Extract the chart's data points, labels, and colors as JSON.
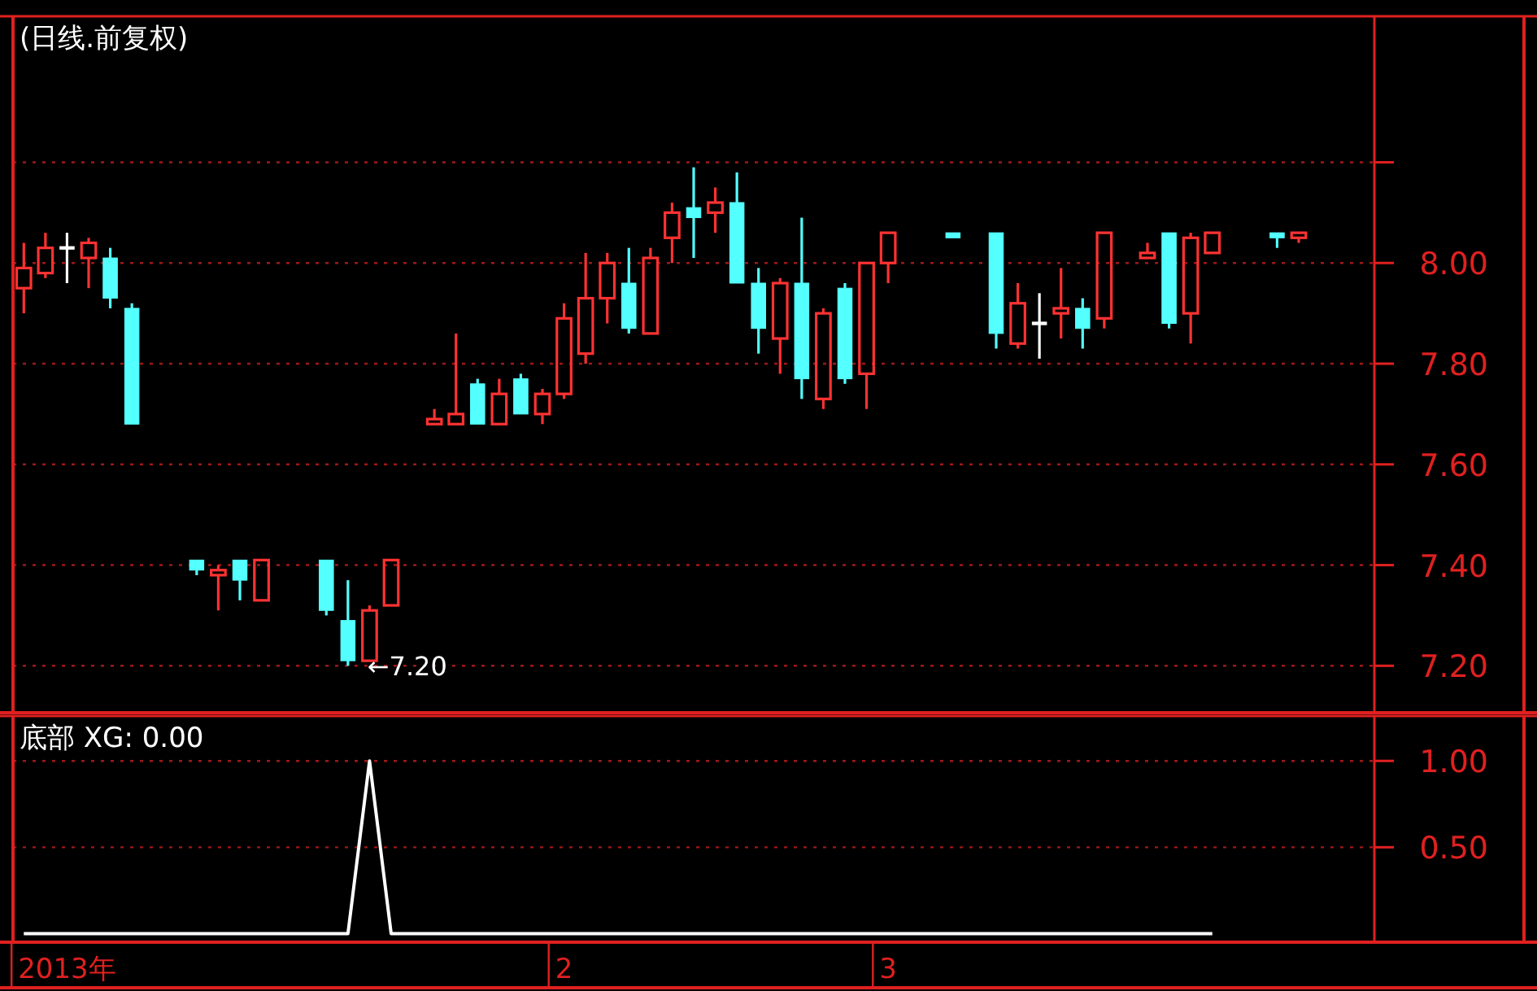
{
  "chart_data": [
    {
      "type": "candlestick",
      "title": "(日线.前复权)",
      "categories": [
        null,
        null,
        null,
        null,
        null,
        null,
        null,
        null,
        null,
        null,
        null,
        null,
        null,
        null,
        null,
        null,
        null,
        null,
        null,
        null,
        null,
        null,
        null,
        null,
        null,
        null,
        null,
        null,
        null,
        null,
        null,
        null,
        null,
        null,
        null,
        null,
        null,
        null,
        null,
        null,
        null,
        null,
        null,
        null,
        null,
        null,
        null,
        null,
        null,
        null,
        null,
        null,
        null,
        null,
        null,
        null,
        null,
        null,
        null,
        null,
        null,
        null,
        null
      ],
      "ohlc": [
        [
          7.95,
          8.04,
          7.9,
          7.99
        ],
        [
          7.98,
          8.06,
          7.97,
          8.03
        ],
        [
          8.03,
          8.06,
          7.96,
          8.03
        ],
        [
          8.01,
          8.05,
          7.95,
          8.04
        ],
        [
          8.01,
          8.03,
          7.91,
          7.93
        ],
        [
          7.91,
          7.92,
          7.68,
          7.68
        ],
        null,
        null,
        [
          7.41,
          7.41,
          7.38,
          7.39
        ],
        [
          7.38,
          7.4,
          7.31,
          7.39
        ],
        [
          7.41,
          7.41,
          7.33,
          7.37
        ],
        [
          7.33,
          7.41,
          7.33,
          7.41
        ],
        null,
        null,
        [
          7.41,
          7.41,
          7.3,
          7.31
        ],
        [
          7.29,
          7.37,
          7.2,
          7.21
        ],
        [
          7.21,
          7.32,
          7.21,
          7.31
        ],
        [
          7.32,
          7.41,
          7.32,
          7.41
        ],
        null,
        [
          7.68,
          7.71,
          7.68,
          7.69
        ],
        [
          7.68,
          7.86,
          7.68,
          7.7
        ],
        [
          7.76,
          7.77,
          7.68,
          7.68
        ],
        [
          7.68,
          7.77,
          7.68,
          7.74
        ],
        [
          7.77,
          7.78,
          7.7,
          7.7
        ],
        [
          7.7,
          7.75,
          7.68,
          7.74
        ],
        [
          7.74,
          7.92,
          7.73,
          7.89
        ],
        [
          7.82,
          8.02,
          7.8,
          7.93
        ],
        [
          7.93,
          8.02,
          7.88,
          8.0
        ],
        [
          7.96,
          8.03,
          7.86,
          7.87
        ],
        [
          7.86,
          8.03,
          7.86,
          8.01
        ],
        [
          8.05,
          8.12,
          8.0,
          8.1
        ],
        [
          8.11,
          8.19,
          8.01,
          8.09
        ],
        [
          8.1,
          8.15,
          8.06,
          8.12
        ],
        [
          8.12,
          8.18,
          7.96,
          7.96
        ],
        [
          7.96,
          7.99,
          7.82,
          7.87
        ],
        [
          7.85,
          7.97,
          7.78,
          7.96
        ],
        [
          7.96,
          8.09,
          7.73,
          7.77
        ],
        [
          7.73,
          7.91,
          7.71,
          7.9
        ],
        [
          7.95,
          7.96,
          7.76,
          7.77
        ],
        [
          7.78,
          8.0,
          7.71,
          8.0
        ],
        [
          8.0,
          8.06,
          7.96,
          8.06
        ],
        null,
        null,
        [
          8.06,
          8.06,
          8.05,
          8.05
        ],
        null,
        [
          8.06,
          8.06,
          7.83,
          7.86
        ],
        [
          7.84,
          7.96,
          7.83,
          7.92
        ],
        [
          7.88,
          7.94,
          7.81,
          7.88
        ],
        [
          7.9,
          7.99,
          7.85,
          7.91
        ],
        [
          7.91,
          7.93,
          7.83,
          7.87
        ],
        [
          7.89,
          8.06,
          7.87,
          8.06
        ],
        null,
        [
          8.01,
          8.04,
          8.01,
          8.02
        ],
        [
          8.06,
          8.06,
          7.87,
          7.88
        ],
        [
          7.9,
          8.06,
          7.84,
          8.05
        ],
        [
          8.02,
          8.06,
          8.02,
          8.06
        ],
        null,
        null,
        [
          8.06,
          8.06,
          8.03,
          8.05
        ],
        [
          8.05,
          8.06,
          8.04,
          8.06
        ],
        null,
        null,
        null
      ],
      "colors": [
        "#ff3232",
        "#ff3232",
        "#ffffff",
        "#ff3232",
        "#54ffff",
        "#54ffff",
        null,
        null,
        "#54ffff",
        "#ff3232",
        "#54ffff",
        "#ff3232",
        null,
        null,
        "#54ffff",
        "#54ffff",
        "#ff3232",
        "#ff3232",
        null,
        "#ff3232",
        "#ff3232",
        "#54ffff",
        "#ff3232",
        "#54ffff",
        "#ff3232",
        "#ff3232",
        "#ff3232",
        "#ff3232",
        "#54ffff",
        "#ff3232",
        "#ff3232",
        "#54ffff",
        "#ff3232",
        "#54ffff",
        "#54ffff",
        "#ff3232",
        "#54ffff",
        "#ff3232",
        "#54ffff",
        "#ff3232",
        "#ff3232",
        null,
        null,
        "#54ffff",
        null,
        "#54ffff",
        "#ff3232",
        "#ffffff",
        "#ff3232",
        "#54ffff",
        "#ff3232",
        null,
        "#ff3232",
        "#54ffff",
        "#ff3232",
        "#ff3232",
        null,
        null,
        "#54ffff",
        "#ff3232",
        null,
        null,
        null
      ],
      "ylim": [
        7.11,
        8.49
      ],
      "yticks": [
        {
          "value": 7.2,
          "label": "7.20"
        },
        {
          "value": 7.4,
          "label": "7.40"
        },
        {
          "value": 7.6,
          "label": "7.60"
        },
        {
          "value": 7.8,
          "label": "7.80"
        },
        {
          "value": 8.0,
          "label": "8.00"
        },
        {
          "value": 8.2,
          "label": null
        }
      ],
      "grid": "y",
      "tick_labels": "y",
      "annotations": [
        "←7.20"
      ]
    },
    {
      "type": "line",
      "title": "底部 XG: 0.00",
      "categories": [
        null,
        null,
        "2013年",
        null,
        null,
        null,
        null,
        null,
        null,
        null,
        null,
        null,
        null,
        null,
        null,
        null,
        null,
        null,
        null,
        null,
        null,
        null,
        null,
        null,
        null,
        "2",
        null,
        null,
        null,
        null,
        null,
        null,
        null,
        null,
        null,
        null,
        null,
        null,
        null,
        null,
        "3",
        null,
        null,
        null,
        null,
        null,
        null,
        null,
        null,
        null,
        null,
        null,
        null,
        null,
        null,
        null,
        null,
        null,
        null,
        null,
        null,
        null,
        null
      ],
      "series": [
        {
          "color": "#ffffff",
          "values": [
            0,
            0,
            0,
            0,
            0,
            0,
            0,
            0,
            0,
            0,
            0,
            0,
            0,
            0,
            0,
            0,
            1,
            0,
            0,
            0,
            0,
            0,
            0,
            0,
            0,
            0,
            0,
            0,
            0,
            0,
            0,
            0,
            0,
            0,
            0,
            0,
            0,
            0,
            0,
            0,
            0,
            0,
            0,
            0,
            0,
            0,
            0,
            0,
            0,
            0,
            0,
            0,
            0,
            0,
            0,
            0,
            null,
            null,
            null,
            null,
            null,
            null,
            null
          ]
        }
      ],
      "ylim": [
        -0.04,
        1.26
      ],
      "yticks": [
        {
          "value": 0.5,
          "label": "0.50"
        },
        {
          "value": 1.0,
          "label": "1.00"
        }
      ],
      "grid": "y"
    }
  ]
}
